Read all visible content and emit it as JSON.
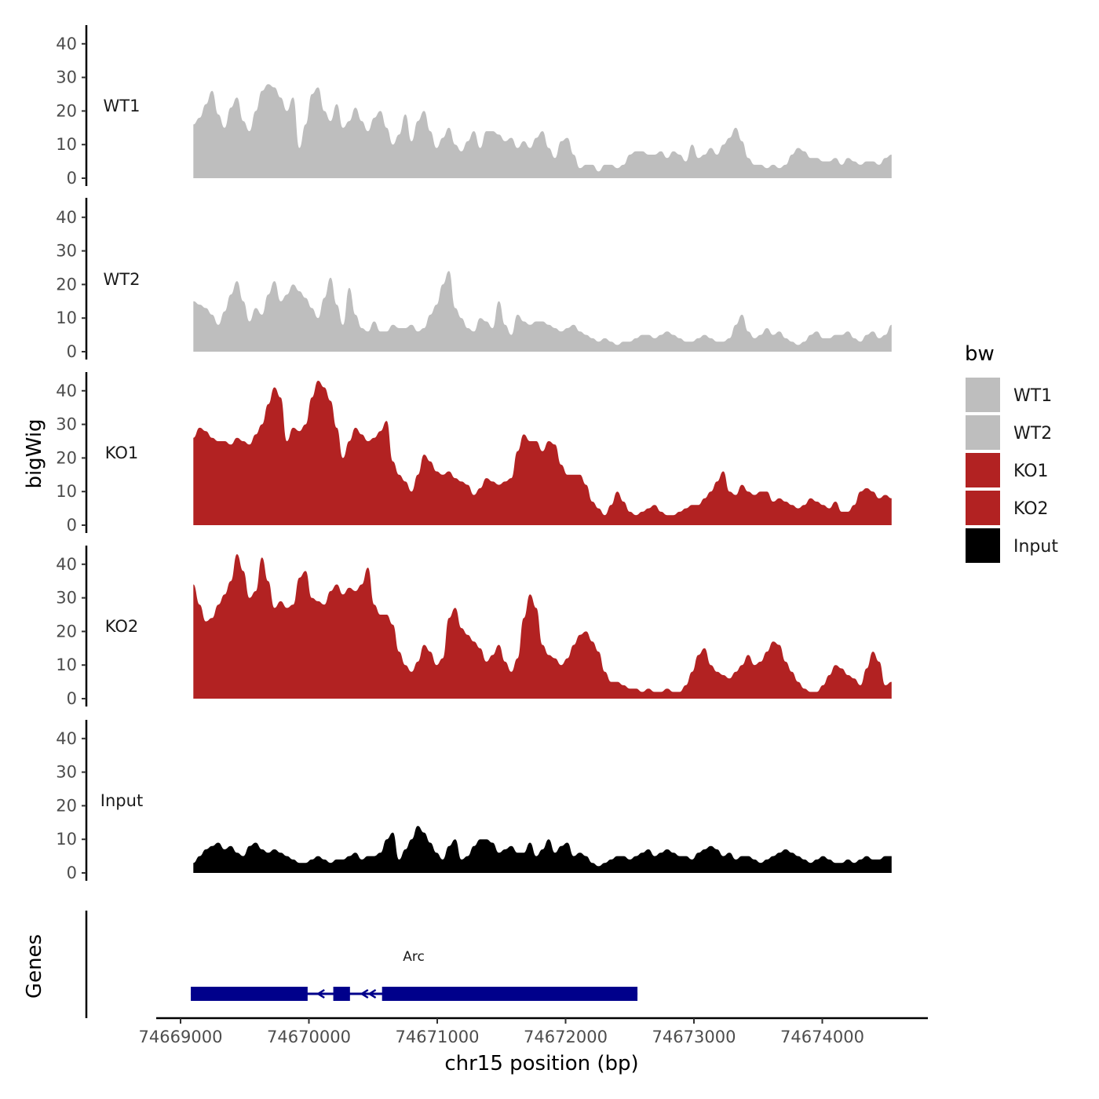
{
  "chart_data": {
    "type": "area",
    "ylabel": "bigWig",
    "xlabel": "chr15 position (bp)",
    "genes_label": "Genes",
    "x_range": [
      74669000,
      74674550
    ],
    "region": [
      74669100,
      74674540
    ],
    "ylim": [
      0,
      45
    ],
    "yticks": [
      0,
      10,
      20,
      30,
      40
    ],
    "xticks": [
      {
        "value": 74669000,
        "label": "74669000"
      },
      {
        "value": 74670000,
        "label": "74670000"
      },
      {
        "value": 74671000,
        "label": "74671000"
      },
      {
        "value": 74672000,
        "label": "74672000"
      },
      {
        "value": 74673000,
        "label": "74673000"
      },
      {
        "value": 74674000,
        "label": "74674000"
      }
    ],
    "series": [
      {
        "name": "WT1",
        "color": "#bebebe",
        "values": [
          16,
          18,
          22,
          26,
          19,
          15,
          21,
          24,
          17,
          14,
          20,
          26,
          28,
          27,
          24,
          20,
          24,
          9,
          16,
          25,
          27,
          20,
          17,
          22,
          15,
          17,
          21,
          17,
          14,
          18,
          20,
          15,
          10,
          13,
          19,
          11,
          17,
          20,
          14,
          9,
          12,
          15,
          10,
          8,
          11,
          14,
          9,
          14,
          14,
          13,
          11,
          12,
          9,
          11,
          9,
          12,
          14,
          9,
          6,
          11,
          12,
          7,
          3,
          4,
          4,
          2,
          4,
          4,
          3,
          4,
          7,
          8,
          8,
          7,
          7,
          8,
          6,
          8,
          7,
          5,
          10,
          6,
          7,
          9,
          7,
          10,
          12,
          15,
          11,
          6,
          4,
          4,
          3,
          4,
          3,
          4,
          7,
          9,
          8,
          6,
          6,
          5,
          5,
          6,
          4,
          6,
          5,
          4,
          5,
          5,
          4,
          6,
          7
        ]
      },
      {
        "name": "WT2",
        "color": "#bebebe",
        "values": [
          15,
          14,
          13,
          11,
          8,
          12,
          17,
          21,
          15,
          9,
          13,
          11,
          17,
          21,
          15,
          17,
          20,
          18,
          16,
          13,
          10,
          16,
          22,
          14,
          8,
          19,
          11,
          7,
          6,
          9,
          6,
          6,
          8,
          7,
          7,
          8,
          6,
          7,
          11,
          14,
          20,
          24,
          13,
          10,
          7,
          6,
          10,
          9,
          7,
          15,
          8,
          5,
          11,
          9,
          8,
          9,
          9,
          8,
          7,
          6,
          7,
          8,
          6,
          5,
          4,
          3,
          4,
          3,
          2,
          3,
          3,
          4,
          5,
          5,
          4,
          5,
          6,
          5,
          4,
          3,
          3,
          4,
          5,
          4,
          3,
          3,
          4,
          8,
          11,
          6,
          4,
          5,
          7,
          5,
          6,
          4,
          3,
          2,
          3,
          5,
          6,
          4,
          4,
          5,
          5,
          6,
          4,
          3,
          5,
          6,
          4,
          5,
          8
        ]
      },
      {
        "name": "KO1",
        "color": "#b22222",
        "values": [
          26,
          29,
          28,
          26,
          25,
          25,
          24,
          26,
          25,
          24,
          27,
          30,
          36,
          41,
          38,
          25,
          29,
          28,
          30,
          38,
          43,
          41,
          37,
          29,
          20,
          25,
          29,
          27,
          25,
          26,
          28,
          31,
          19,
          15,
          13,
          10,
          15,
          21,
          19,
          16,
          15,
          16,
          14,
          13,
          12,
          9,
          11,
          14,
          13,
          12,
          13,
          14,
          22,
          27,
          25,
          25,
          22,
          25,
          24,
          18,
          15,
          15,
          15,
          12,
          7,
          5,
          3,
          6,
          10,
          7,
          4,
          3,
          4,
          5,
          6,
          4,
          3,
          3,
          4,
          5,
          6,
          6,
          8,
          10,
          13,
          16,
          10,
          9,
          12,
          10,
          9,
          10,
          10,
          7,
          8,
          7,
          6,
          5,
          6,
          8,
          7,
          6,
          5,
          7,
          4,
          4,
          6,
          10,
          11,
          10,
          8,
          9,
          8
        ]
      },
      {
        "name": "KO2",
        "color": "#b22222",
        "values": [
          34,
          28,
          23,
          24,
          28,
          31,
          35,
          43,
          38,
          30,
          32,
          42,
          35,
          27,
          29,
          27,
          28,
          36,
          38,
          30,
          29,
          28,
          32,
          34,
          31,
          33,
          32,
          34,
          39,
          28,
          25,
          25,
          22,
          14,
          10,
          8,
          11,
          16,
          14,
          10,
          12,
          24,
          27,
          21,
          19,
          17,
          15,
          11,
          13,
          16,
          11,
          8,
          12,
          24,
          31,
          27,
          16,
          13,
          12,
          10,
          12,
          16,
          19,
          20,
          17,
          14,
          8,
          5,
          5,
          4,
          3,
          3,
          2,
          3,
          2,
          2,
          3,
          2,
          2,
          4,
          8,
          13,
          15,
          10,
          8,
          7,
          6,
          8,
          10,
          13,
          10,
          11,
          14,
          17,
          16,
          11,
          8,
          5,
          3,
          2,
          2,
          4,
          7,
          10,
          9,
          7,
          6,
          4,
          9,
          14,
          11,
          4,
          5
        ]
      },
      {
        "name": "Input",
        "color": "#000000",
        "values": [
          3,
          5,
          7,
          8,
          9,
          7,
          8,
          6,
          5,
          8,
          9,
          7,
          6,
          7,
          6,
          5,
          4,
          3,
          3,
          4,
          5,
          4,
          3,
          4,
          4,
          5,
          6,
          4,
          5,
          5,
          6,
          10,
          12,
          4,
          7,
          10,
          14,
          12,
          9,
          6,
          4,
          8,
          10,
          4,
          5,
          8,
          10,
          10,
          9,
          6,
          7,
          8,
          6,
          6,
          9,
          5,
          7,
          10,
          6,
          8,
          9,
          5,
          6,
          5,
          3,
          2,
          3,
          4,
          5,
          5,
          4,
          5,
          6,
          7,
          5,
          6,
          7,
          6,
          5,
          5,
          4,
          6,
          7,
          8,
          7,
          5,
          6,
          4,
          5,
          5,
          4,
          3,
          4,
          5,
          6,
          7,
          6,
          5,
          4,
          3,
          4,
          5,
          4,
          3,
          3,
          4,
          3,
          4,
          5,
          4,
          4,
          5,
          5
        ]
      }
    ],
    "legend": {
      "title": "bw",
      "entries": [
        {
          "label": "WT1",
          "color": "#bebebe"
        },
        {
          "label": "WT2",
          "color": "#bebebe"
        },
        {
          "label": "KO1",
          "color": "#b22222"
        },
        {
          "label": "KO2",
          "color": "#b22222"
        },
        {
          "label": "Input",
          "color": "#000000"
        }
      ]
    },
    "gene": {
      "name": "Arc",
      "color": "#00008b",
      "start": 74669080,
      "end": 74672560,
      "strand": "-",
      "exons": [
        [
          74669080,
          74669990
        ],
        [
          74670190,
          74670320
        ],
        [
          74670570,
          74672560
        ]
      ],
      "arrows": [
        74670090,
        74670430,
        74670490
      ]
    }
  }
}
